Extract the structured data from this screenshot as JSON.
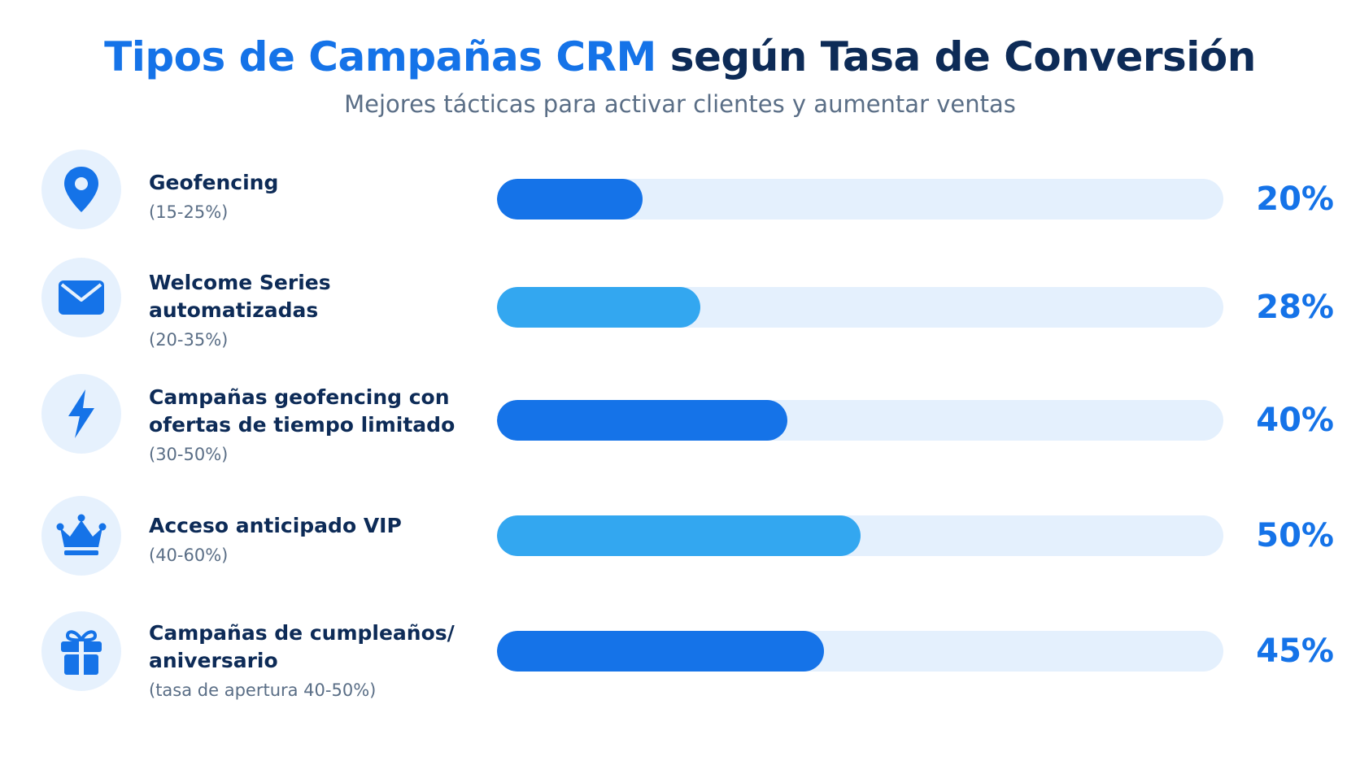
{
  "chart_data": {
    "type": "bar",
    "orientation": "horizontal",
    "title_part1": "Tipos de Campañas CRM",
    "title_part2": "según Tasa de Conversión",
    "subtitle": "Mejores tácticas para activar clientes y aumentar ventas",
    "xlim": [
      0,
      100
    ],
    "grid": false,
    "colors": {
      "dark": "#1573e8",
      "light": "#33a7f0",
      "track": "#e4f0fd",
      "title_accent": "#1573e8",
      "title_dark": "#0d2b57"
    },
    "bars": [
      {
        "icon": "location-pin-icon",
        "label_lines": [
          "Geofencing"
        ],
        "range": "(15-25%)",
        "value": 20,
        "value_label": "20%",
        "color": "#1573e8"
      },
      {
        "icon": "envelope-icon",
        "label_lines": [
          "Welcome Series",
          "automatizadas"
        ],
        "range": "(20-35%)",
        "value": 28,
        "value_label": "28%",
        "color": "#33a7f0"
      },
      {
        "icon": "lightning-icon",
        "label_lines": [
          "Campañas geofencing con",
          "ofertas de tiempo limitado"
        ],
        "range": "(30-50%)",
        "value": 40,
        "value_label": "40%",
        "color": "#1573e8"
      },
      {
        "icon": "crown-icon",
        "label_lines": [
          "Acceso anticipado VIP"
        ],
        "range": "(40-60%)",
        "value": 50,
        "value_label": "50%",
        "color": "#33a7f0"
      },
      {
        "icon": "gift-icon",
        "label_lines": [
          "Campañas de cumpleaños/",
          "aniversario"
        ],
        "range": "(tasa de apertura 40-50%)",
        "value": 45,
        "value_label": "45%",
        "color": "#1573e8"
      }
    ]
  }
}
